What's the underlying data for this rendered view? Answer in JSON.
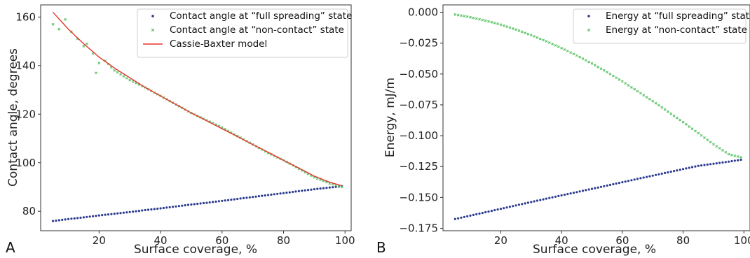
{
  "chart_data": [
    {
      "type": "scatter",
      "panel_label": "A",
      "xlabel": "Surface coverage, %",
      "ylabel": "Contact angle, degrees",
      "xlim": [
        1,
        102
      ],
      "ylim": [
        72,
        165
      ],
      "xticks": [
        "20",
        "40",
        "60",
        "80",
        "100"
      ],
      "yticks": [
        "80",
        "100",
        "120",
        "140",
        "160"
      ],
      "grid": false,
      "legend_position": "top-right",
      "colors": {
        "full": "#2b3a8f",
        "noncontact": "#5fc46a",
        "model": "#e8342e"
      },
      "series": [
        {
          "name": "Contact angle at “full spreading” state",
          "marker": "point",
          "x": [
            5,
            10,
            15,
            20,
            25,
            30,
            35,
            40,
            45,
            50,
            55,
            60,
            65,
            70,
            75,
            80,
            85,
            90,
            95,
            99
          ],
          "y": [
            76.0,
            76.8,
            77.5,
            78.3,
            79.0,
            79.7,
            80.5,
            81.2,
            82.0,
            82.8,
            83.5,
            84.3,
            85.1,
            85.9,
            86.7,
            87.5,
            88.3,
            89.1,
            89.8,
            90.3
          ]
        },
        {
          "name": "Contact angle at “non-contact” state",
          "marker": "x",
          "x": [
            5,
            7,
            9,
            11,
            13,
            15,
            16,
            18,
            19,
            20,
            22,
            25,
            30,
            35,
            40,
            45,
            50,
            55,
            60,
            65,
            70,
            75,
            80,
            85,
            90,
            95,
            99
          ],
          "y": [
            157.0,
            155.0,
            159.0,
            154.0,
            151.0,
            148.0,
            149.0,
            145.0,
            137.0,
            141.0,
            142.0,
            138.0,
            134.0,
            131.0,
            127.5,
            124.0,
            120.5,
            117.5,
            114.5,
            111.0,
            107.5,
            104.0,
            101.0,
            97.5,
            94.0,
            91.5,
            90.0
          ]
        },
        {
          "name": "Cassie-Baxter model",
          "marker": "line",
          "x": [
            5,
            10,
            15,
            20,
            25,
            30,
            35,
            40,
            45,
            50,
            55,
            60,
            65,
            70,
            75,
            80,
            85,
            90,
            95,
            99
          ],
          "y": [
            162.0,
            155.0,
            149.0,
            143.5,
            139.0,
            135.0,
            131.0,
            127.5,
            124.0,
            120.5,
            117.3,
            114.0,
            110.8,
            107.5,
            104.3,
            101.0,
            97.8,
            94.5,
            92.0,
            90.5
          ]
        }
      ]
    },
    {
      "type": "scatter",
      "panel_label": "B",
      "xlabel": "Surface coverage, %",
      "ylabel": "Energy, mJ/m",
      "xlim": [
        1,
        102
      ],
      "ylim": [
        -0.177,
        0.006
      ],
      "xticks": [
        "20",
        "40",
        "60",
        "80",
        "100"
      ],
      "yticks": [
        "0.000",
        "−0.025",
        "−0.050",
        "−0.075",
        "−0.100",
        "−0.125",
        "−0.150",
        "−0.175"
      ],
      "grid": false,
      "legend_position": "top-right",
      "colors": {
        "full": "#2b3a8f",
        "noncontact": "#5fc46a"
      },
      "series": [
        {
          "name": "Energy at “full spreading” state",
          "marker": "point",
          "x": [
            5,
            15,
            25,
            35,
            45,
            55,
            65,
            75,
            85,
            95,
            99
          ],
          "y": [
            -0.1675,
            -0.162,
            -0.1565,
            -0.151,
            -0.1457,
            -0.1404,
            -0.135,
            -0.1297,
            -0.1244,
            -0.121,
            -0.1195
          ]
        },
        {
          "name": "Energy at “non-contact” state",
          "marker": "x",
          "x": [
            5,
            10,
            15,
            20,
            25,
            30,
            35,
            40,
            45,
            50,
            55,
            60,
            65,
            70,
            75,
            80,
            85,
            90,
            95,
            99
          ],
          "y": [
            -0.0018,
            -0.004,
            -0.0068,
            -0.01,
            -0.014,
            -0.0185,
            -0.0235,
            -0.029,
            -0.035,
            -0.0415,
            -0.0485,
            -0.056,
            -0.064,
            -0.072,
            -0.0805,
            -0.089,
            -0.098,
            -0.107,
            -0.115,
            -0.1175
          ]
        }
      ]
    }
  ]
}
